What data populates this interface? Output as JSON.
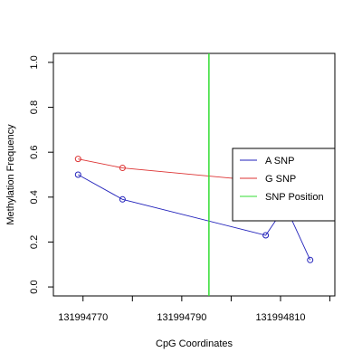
{
  "chart_data": {
    "type": "line",
    "xlabel": "CpG Coordinates",
    "ylabel": "Methylation Frequency",
    "xlim": [
      131994764,
      131994821
    ],
    "ylim": [
      -0.04,
      1.04
    ],
    "x_ticks": [
      131994770,
      131994780,
      131994790,
      131994800,
      131994810,
      131994820
    ],
    "x_tick_labels": [
      "131994770",
      "",
      "131994790",
      "",
      "131994810",
      ""
    ],
    "y_ticks": [
      0.0,
      0.2,
      0.4,
      0.6,
      0.8,
      1.0
    ],
    "y_tick_labels": [
      "0.0",
      "0.2",
      "0.4",
      "0.6",
      "0.8",
      "1.0"
    ],
    "grid": false,
    "legend_position": "right",
    "series": [
      {
        "name": "A SNP",
        "color": "#2222bb",
        "x": [
          131994769,
          131994778,
          131994807,
          131994811,
          131994816
        ],
        "y": [
          0.5,
          0.39,
          0.23,
          0.36,
          0.12
        ]
      },
      {
        "name": "G SNP",
        "color": "#dd3333",
        "x": [
          131994769,
          131994778,
          131994807
        ],
        "y": [
          0.57,
          0.53,
          0.47
        ]
      }
    ],
    "vlines": [
      {
        "name": "SNP Position",
        "color": "#33dd33",
        "x": 131994795.5
      }
    ]
  }
}
